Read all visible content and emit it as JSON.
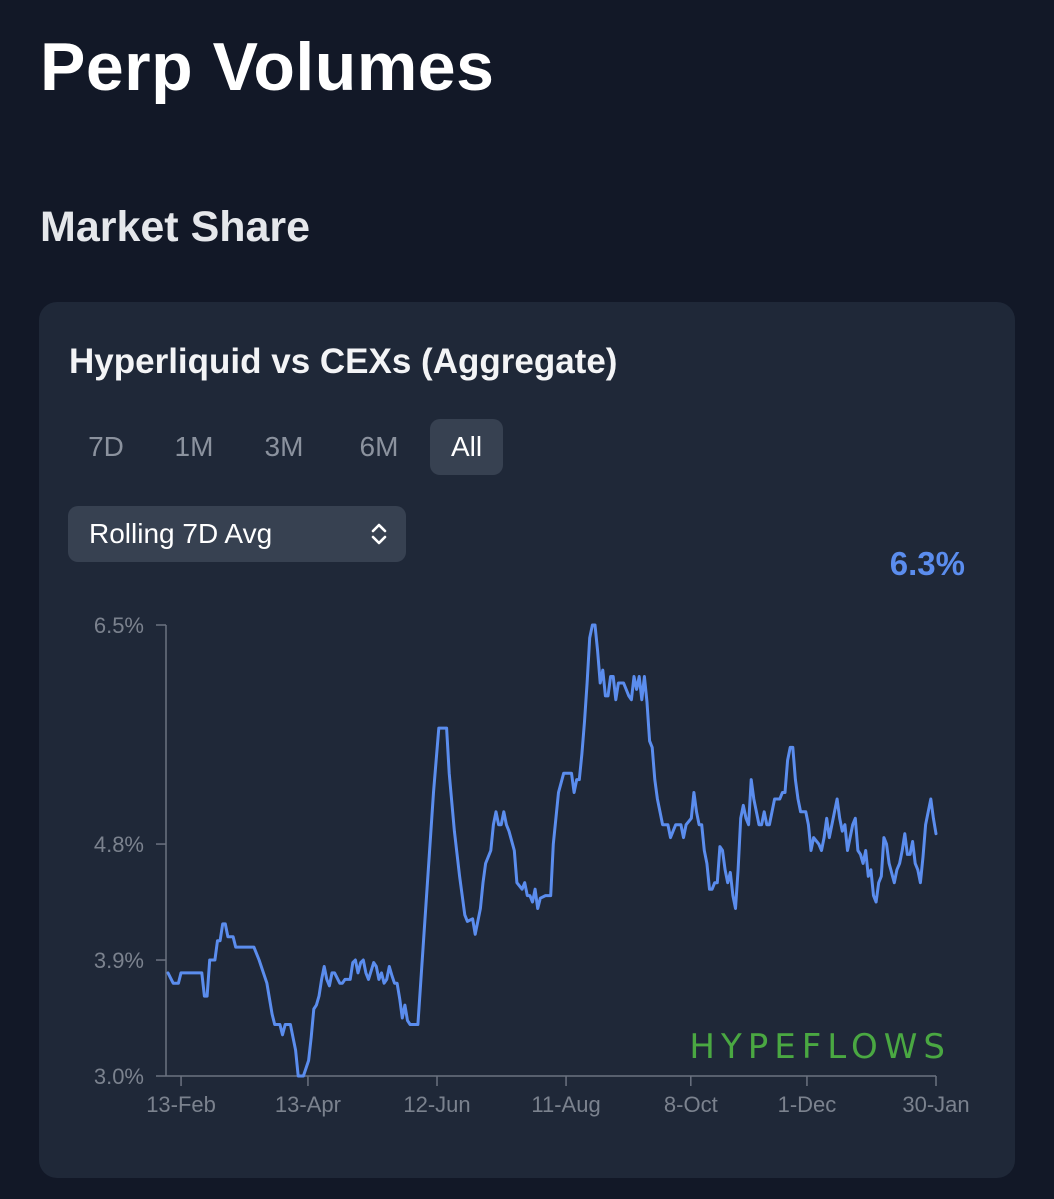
{
  "header": {
    "title": "Perp Volumes",
    "section": "Market Share"
  },
  "card": {
    "title": "Hyperliquid vs CEXs (Aggregate)",
    "range_tabs": [
      {
        "label": "7D",
        "active": false
      },
      {
        "label": "1M",
        "active": false
      },
      {
        "label": "3M",
        "active": false
      },
      {
        "label": "6M",
        "active": false
      },
      {
        "label": "All",
        "active": true
      }
    ],
    "select": {
      "value": "Rolling 7D Avg"
    },
    "current_value": "6.3%",
    "watermark": "HYPEFLOWS"
  },
  "colors": {
    "background": "#121827",
    "card": "#1f2838",
    "line": "#5b8dee",
    "watermark": "#4aa842"
  },
  "chart_data": {
    "type": "line",
    "title": "Hyperliquid vs CEXs (Aggregate)",
    "series_name": "",
    "ylim": [
      3.0,
      6.5
    ],
    "y_ticks": [
      {
        "value": 3.0,
        "label": "3.0%"
      },
      {
        "value": 3.9,
        "label": "3.9%"
      },
      {
        "value": 4.8,
        "label": "4.8%"
      },
      {
        "value": 6.5,
        "label": "6.5%"
      }
    ],
    "x_ticks": [
      {
        "day": 7,
        "label": "13-Feb"
      },
      {
        "day": 66,
        "label": "13-Apr"
      },
      {
        "day": 126,
        "label": "12-Jun"
      },
      {
        "day": 186,
        "label": "11-Aug"
      },
      {
        "day": 244,
        "label": "8-Oct"
      },
      {
        "day": 298,
        "label": "1-Dec"
      },
      {
        "day": 358,
        "label": "30-Jan"
      }
    ],
    "x_unit": "day",
    "x_range": [
      0,
      358
    ],
    "points": [
      [
        0,
        3.8
      ],
      [
        2,
        3.72
      ],
      [
        4,
        3.72
      ],
      [
        5,
        3.8
      ],
      [
        8,
        3.8
      ],
      [
        13,
        3.8
      ],
      [
        14,
        3.62
      ],
      [
        15,
        3.62
      ],
      [
        16,
        3.9
      ],
      [
        18,
        3.9
      ],
      [
        19,
        4.05
      ],
      [
        20,
        4.05
      ],
      [
        21,
        4.18
      ],
      [
        22,
        4.18
      ],
      [
        23,
        4.08
      ],
      [
        25,
        4.08
      ],
      [
        26,
        4.0
      ],
      [
        29,
        4.0
      ],
      [
        33,
        4.0
      ],
      [
        35,
        3.9
      ],
      [
        38,
        3.72
      ],
      [
        39,
        3.6
      ],
      [
        40,
        3.48
      ],
      [
        41,
        3.4
      ],
      [
        43,
        3.4
      ],
      [
        44,
        3.32
      ],
      [
        45,
        3.4
      ],
      [
        47,
        3.4
      ],
      [
        49,
        3.2
      ],
      [
        50,
        3.0
      ],
      [
        52,
        3.0
      ],
      [
        54,
        3.12
      ],
      [
        55,
        3.3
      ],
      [
        56,
        3.52
      ],
      [
        57,
        3.55
      ],
      [
        58,
        3.62
      ],
      [
        59,
        3.75
      ],
      [
        60,
        3.85
      ],
      [
        61,
        3.75
      ],
      [
        62,
        3.7
      ],
      [
        63,
        3.8
      ],
      [
        64,
        3.8
      ],
      [
        66,
        3.72
      ],
      [
        67,
        3.72
      ],
      [
        68,
        3.75
      ],
      [
        70,
        3.75
      ],
      [
        71,
        3.88
      ],
      [
        72,
        3.9
      ],
      [
        73,
        3.8
      ],
      [
        74,
        3.88
      ],
      [
        75,
        3.9
      ],
      [
        76,
        3.8
      ],
      [
        77,
        3.75
      ],
      [
        79,
        3.88
      ],
      [
        80,
        3.85
      ],
      [
        81,
        3.75
      ],
      [
        82,
        3.8
      ],
      [
        83,
        3.72
      ],
      [
        84,
        3.75
      ],
      [
        85,
        3.85
      ],
      [
        86,
        3.78
      ],
      [
        87,
        3.72
      ],
      [
        88,
        3.72
      ],
      [
        89,
        3.6
      ],
      [
        90,
        3.45
      ],
      [
        91,
        3.55
      ],
      [
        92,
        3.43
      ],
      [
        93,
        3.4
      ],
      [
        96,
        3.4
      ],
      [
        98,
        4.0
      ],
      [
        100,
        4.6
      ],
      [
        102,
        5.2
      ],
      [
        104,
        5.7
      ],
      [
        107,
        5.7
      ],
      [
        108,
        5.35
      ],
      [
        110,
        4.9
      ],
      [
        112,
        4.55
      ],
      [
        114,
        4.25
      ],
      [
        115,
        4.2
      ],
      [
        117,
        4.22
      ],
      [
        118,
        4.1
      ],
      [
        120,
        4.3
      ],
      [
        121,
        4.5
      ],
      [
        122,
        4.65
      ],
      [
        124,
        4.75
      ],
      [
        125,
        4.95
      ],
      [
        126,
        5.05
      ],
      [
        127,
        4.95
      ],
      [
        128,
        4.95
      ],
      [
        129,
        5.05
      ],
      [
        130,
        4.95
      ],
      [
        131,
        4.9
      ],
      [
        133,
        4.75
      ],
      [
        134,
        4.5
      ],
      [
        136,
        4.45
      ],
      [
        137,
        4.5
      ],
      [
        138,
        4.4
      ],
      [
        139,
        4.4
      ],
      [
        140,
        4.35
      ],
      [
        141,
        4.45
      ],
      [
        142,
        4.3
      ],
      [
        143,
        4.38
      ],
      [
        145,
        4.4
      ],
      [
        147,
        4.4
      ],
      [
        148,
        4.8
      ],
      [
        150,
        5.2
      ],
      [
        152,
        5.35
      ],
      [
        155,
        5.35
      ],
      [
        156,
        5.2
      ],
      [
        157,
        5.3
      ],
      [
        158,
        5.3
      ],
      [
        159,
        5.5
      ],
      [
        160,
        5.75
      ],
      [
        161,
        6.05
      ],
      [
        162,
        6.4
      ],
      [
        163,
        6.5
      ],
      [
        164,
        6.5
      ],
      [
        165,
        6.3
      ],
      [
        166,
        6.05
      ],
      [
        167,
        6.15
      ],
      [
        168,
        5.95
      ],
      [
        169,
        5.95
      ],
      [
        170,
        6.1
      ],
      [
        171,
        6.1
      ],
      [
        172,
        5.92
      ],
      [
        173,
        6.05
      ],
      [
        175,
        6.05
      ],
      [
        177,
        5.95
      ],
      [
        178,
        5.92
      ],
      [
        179,
        6.1
      ],
      [
        180,
        6.0
      ],
      [
        181,
        6.1
      ],
      [
        182,
        5.92
      ],
      [
        183,
        6.1
      ],
      [
        184,
        5.9
      ],
      [
        185,
        5.6
      ],
      [
        186,
        5.55
      ],
      [
        187,
        5.3
      ],
      [
        188,
        5.15
      ],
      [
        189,
        5.05
      ],
      [
        190,
        4.95
      ],
      [
        192,
        4.95
      ],
      [
        193,
        4.85
      ],
      [
        195,
        4.95
      ],
      [
        197,
        4.95
      ],
      [
        198,
        4.85
      ],
      [
        199,
        4.95
      ],
      [
        201,
        5.0
      ],
      [
        202,
        5.2
      ],
      [
        203,
        5.05
      ],
      [
        204,
        4.95
      ],
      [
        205,
        4.95
      ],
      [
        206,
        4.75
      ],
      [
        207,
        4.65
      ],
      [
        208,
        4.45
      ],
      [
        209,
        4.45
      ],
      [
        210,
        4.5
      ],
      [
        211,
        4.5
      ],
      [
        212,
        4.78
      ],
      [
        213,
        4.75
      ],
      [
        214,
        4.6
      ],
      [
        215,
        4.5
      ],
      [
        216,
        4.58
      ],
      [
        217,
        4.4
      ],
      [
        218,
        4.3
      ],
      [
        219,
        4.6
      ],
      [
        220,
        5.0
      ],
      [
        221,
        5.1
      ],
      [
        222,
        5.0
      ],
      [
        223,
        4.95
      ],
      [
        224,
        5.3
      ],
      [
        225,
        5.15
      ],
      [
        226,
        5.05
      ],
      [
        227,
        4.95
      ],
      [
        228,
        4.95
      ],
      [
        229,
        5.05
      ],
      [
        230,
        4.95
      ],
      [
        231,
        4.95
      ],
      [
        232,
        5.05
      ],
      [
        233,
        5.15
      ],
      [
        235,
        5.15
      ],
      [
        236,
        5.2
      ],
      [
        237,
        5.2
      ],
      [
        238,
        5.45
      ],
      [
        239,
        5.55
      ],
      [
        240,
        5.55
      ],
      [
        241,
        5.3
      ],
      [
        242,
        5.15
      ],
      [
        243,
        5.05
      ],
      [
        245,
        5.05
      ],
      [
        246,
        4.95
      ],
      [
        247,
        4.75
      ],
      [
        248,
        4.85
      ],
      [
        250,
        4.8
      ],
      [
        251,
        4.75
      ],
      [
        252,
        4.85
      ],
      [
        253,
        5.0
      ],
      [
        254,
        4.85
      ],
      [
        255,
        4.95
      ],
      [
        256,
        5.05
      ],
      [
        257,
        5.15
      ],
      [
        258,
        5.0
      ],
      [
        259,
        4.9
      ],
      [
        260,
        4.95
      ],
      [
        261,
        4.75
      ],
      [
        263,
        4.95
      ],
      [
        264,
        5.0
      ],
      [
        265,
        4.75
      ],
      [
        266,
        4.72
      ],
      [
        267,
        4.65
      ],
      [
        268,
        4.75
      ],
      [
        269,
        4.55
      ],
      [
        270,
        4.6
      ],
      [
        271,
        4.4
      ],
      [
        272,
        4.35
      ],
      [
        273,
        4.5
      ],
      [
        274,
        4.55
      ],
      [
        275,
        4.85
      ],
      [
        276,
        4.8
      ],
      [
        277,
        4.65
      ],
      [
        279,
        4.5
      ],
      [
        280,
        4.6
      ],
      [
        281,
        4.65
      ],
      [
        282,
        4.75
      ],
      [
        283,
        4.88
      ],
      [
        284,
        4.72
      ],
      [
        285,
        4.72
      ],
      [
        286,
        4.82
      ],
      [
        287,
        4.65
      ],
      [
        288,
        4.6
      ],
      [
        289,
        4.5
      ],
      [
        290,
        4.7
      ],
      [
        291,
        4.95
      ],
      [
        292,
        5.05
      ],
      [
        293,
        5.15
      ],
      [
        294,
        5.0
      ],
      [
        295,
        4.88
      ]
    ]
  }
}
